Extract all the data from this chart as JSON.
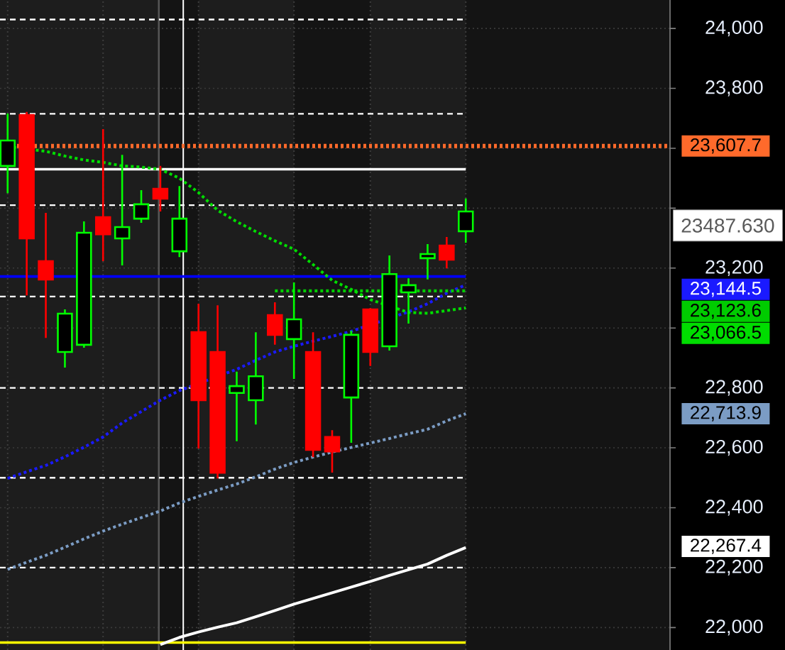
{
  "chart_data": {
    "type": "candlestick",
    "categories": [
      null,
      null,
      null,
      null,
      null,
      null,
      null,
      null,
      null,
      null,
      null,
      null,
      null,
      null,
      null,
      null,
      null,
      null,
      null,
      null,
      null,
      null,
      null,
      null,
      null
    ],
    "ohlc": [
      [
        23541,
        23716,
        23450,
        23626
      ],
      [
        23711,
        23721,
        23109,
        23299
      ],
      [
        23223,
        23384,
        22967,
        23162
      ],
      [
        22920,
        23062,
        22868,
        23048
      ],
      [
        22944,
        23356,
        22934,
        23318
      ],
      [
        23370,
        23664,
        23223,
        23313
      ],
      [
        23299,
        23578,
        23209,
        23337
      ],
      [
        23365,
        23460,
        23351,
        23413
      ],
      [
        23465,
        23541,
        23389,
        23432
      ],
      [
        23256,
        23474,
        23237,
        23365
      ],
      [
        22986,
        23081,
        22598,
        22759
      ],
      [
        22920,
        23076,
        22498,
        22517
      ],
      [
        22783,
        22854,
        22622,
        22806
      ],
      [
        22759,
        22986,
        22678,
        22839
      ],
      [
        23043,
        23086,
        22944,
        22977
      ],
      [
        22963,
        23152,
        22830,
        23029
      ],
      [
        22920,
        22986,
        22569,
        22593
      ],
      [
        22636,
        22659,
        22517,
        22588
      ],
      [
        22768,
        22991,
        22617,
        22977
      ],
      [
        23062,
        23066,
        22873,
        22920
      ],
      [
        22939,
        23242,
        22925,
        23180
      ],
      [
        23119,
        23166,
        23015,
        23143
      ],
      [
        23233,
        23280,
        23162,
        23247
      ],
      [
        23275,
        23304,
        23199,
        23228
      ],
      [
        23323,
        23432,
        23285,
        23389
      ]
    ],
    "colors": [
      "#00ff00",
      "#ff0000",
      "#ff0000",
      "#00ff00",
      "#00ff00",
      "#ff0000",
      "#00ff00",
      "#00ff00",
      "#ff0000",
      "#00ff00",
      "#ff0000",
      "#ff0000",
      "#00ff00",
      "#00ff00",
      "#ff0000",
      "#00ff00",
      "#ff0000",
      "#ff0000",
      "#00ff00",
      "#ff0000",
      "#00ff00",
      "#00ff00",
      "#00ff00",
      "#ff0000",
      "#00ff00"
    ],
    "series": [
      {
        "type": "line",
        "color": "#1a1aff",
        "line_style": "dotted",
        "values": [
          22498,
          22520,
          22541,
          22570,
          22602,
          22636,
          22683,
          22721,
          22759,
          22791,
          null,
          null,
          22862,
          22892,
          22920,
          22939,
          22956,
          22972,
          22989,
          null,
          null,
          23054,
          23081,
          23116,
          23144
        ]
      },
      {
        "type": "line",
        "color": "#00cc00",
        "line_style": "dotted",
        "values": [
          null,
          null,
          null,
          null,
          null,
          null,
          null,
          null,
          null,
          null,
          null,
          null,
          null,
          null,
          23124,
          23124,
          23124,
          23124,
          23124,
          23124,
          null,
          23124,
          23124,
          23124,
          23124
        ]
      },
      {
        "type": "line",
        "color": "#00dd00",
        "line_style": "dotted",
        "values": [
          23605,
          null,
          23590,
          23574,
          23561,
          23553,
          23541,
          23537,
          23530,
          23500,
          23452,
          23393,
          23355,
          23322,
          23291,
          23263,
          23212,
          23159,
          23129,
          23095,
          null,
          23052,
          23049,
          23058,
          23067
        ]
      },
      {
        "type": "line",
        "color": "#7b9cc4",
        "line_style": "dotted",
        "values": [
          22194,
          22218,
          22241,
          22268,
          22296,
          22322,
          22345,
          22367,
          22389,
          22416,
          22438,
          22459,
          22479,
          22503,
          22529,
          22551,
          22569,
          22586,
          22601,
          22616,
          22631,
          22647,
          22662,
          22690,
          22714
        ]
      },
      {
        "type": "line",
        "color": "#ffffff",
        "line_style": "solid",
        "values": [
          null,
          null,
          null,
          null,
          null,
          null,
          null,
          null,
          21943,
          21967,
          21985,
          22001,
          22016,
          22036,
          22057,
          22078,
          22097,
          22116,
          22135,
          22154,
          22174,
          22193,
          22212,
          22241,
          22267
        ]
      }
    ],
    "ylim": [
      21925,
      24095
    ],
    "yticks": [
      {
        "value": 22000,
        "label": "22,000"
      },
      {
        "value": 22200,
        "label": "22,200"
      },
      {
        "value": 22400,
        "label": "22,400"
      },
      {
        "value": 22600,
        "label": "22,600"
      },
      {
        "value": 22800,
        "label": "22,800"
      },
      {
        "value": 23000,
        "label": null
      },
      {
        "value": 23200,
        "label": "23,200"
      },
      {
        "value": 23400,
        "label": null
      },
      {
        "value": 23600,
        "label": null
      },
      {
        "value": 23800,
        "label": "23,800"
      },
      {
        "value": 24000,
        "label": "24,000"
      }
    ],
    "grid": true,
    "ref_lines": [
      {
        "axis": "y",
        "value": 24030,
        "color": "#ffffff",
        "line_style": "dashed"
      },
      {
        "axis": "y",
        "value": 23715,
        "color": "#ffffff",
        "line_style": "dashed"
      },
      {
        "axis": "y",
        "value": 23410,
        "color": "#ffffff",
        "line_style": "dashed"
      },
      {
        "axis": "y",
        "value": 23105,
        "color": "#ffffff",
        "line_style": "dashed"
      },
      {
        "axis": "y",
        "value": 22800,
        "color": "#ffffff",
        "line_style": "dashed"
      },
      {
        "axis": "y",
        "value": 22500,
        "color": "#ffffff",
        "line_style": "dashed"
      },
      {
        "axis": "y",
        "value": 22200,
        "color": "#ffffff",
        "line_style": "dashed"
      },
      {
        "axis": "y",
        "value": 23607.7,
        "label": "23,607.7",
        "color": "#ff6a2b",
        "line_style": "dotted"
      },
      {
        "axis": "y",
        "value": 23530,
        "color": "#ffffff",
        "line_style": "solid"
      },
      {
        "axis": "y",
        "value": 23172,
        "color": "#0000ff",
        "line_style": "solid"
      },
      {
        "axis": "y",
        "value": 21950,
        "color": "#ffff00",
        "line_style": "solid"
      }
    ],
    "annotations": [
      "23,144.5",
      "23,123.6",
      "23,066.5",
      "22,713.9",
      "22,267.4",
      "23487.630"
    ]
  }
}
